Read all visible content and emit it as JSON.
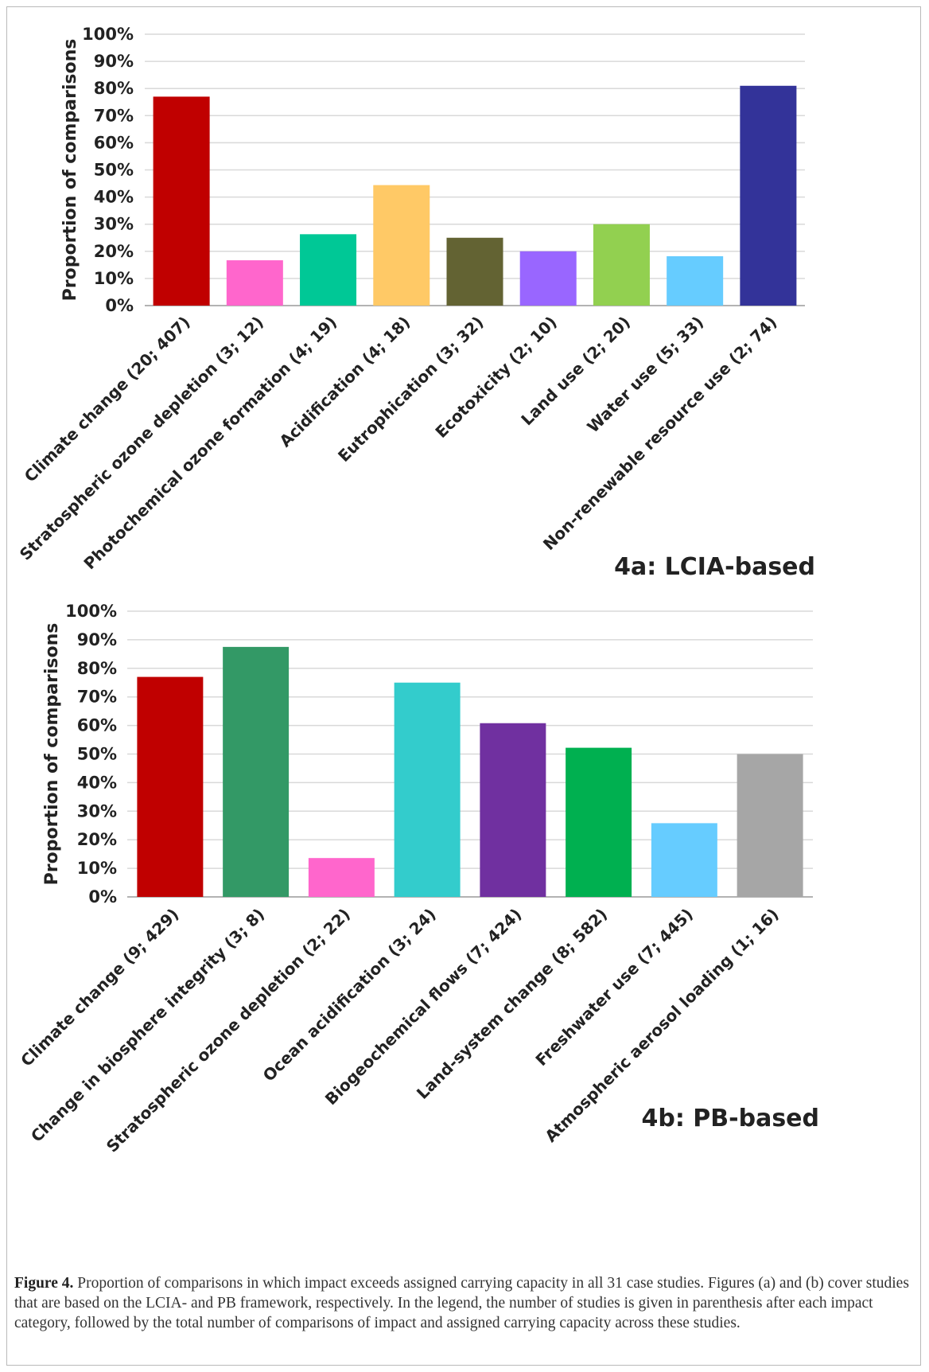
{
  "chart_data": [
    {
      "type": "bar",
      "panel_label": "4a: LCIA-based",
      "ylabel": "Proportion of comparisons",
      "ylim": [
        0,
        100
      ],
      "yticks": [
        "0%",
        "10%",
        "20%",
        "30%",
        "40%",
        "50%",
        "60%",
        "70%",
        "80%",
        "90%",
        "100%"
      ],
      "grid": true,
      "categories": [
        "Climate change (20; 407)",
        "Stratospheric ozone depletion (3; 12)",
        "Photochemical ozone formation (4; 19)",
        "Acidification (4; 18)",
        "Eutrophication (3; 32)",
        "Ecotoxicity (2; 10)",
        "Land use (2; 20)",
        "Water use (5; 33)",
        "Non-renewable resource use (2; 74)"
      ],
      "values": [
        77,
        16.7,
        26.3,
        44.4,
        25,
        20,
        30,
        18.2,
        81
      ],
      "colors": [
        "#c00000",
        "#ff66cc",
        "#00c896",
        "#ffc966",
        "#636333",
        "#9966ff",
        "#92d050",
        "#66ccff",
        "#333399"
      ]
    },
    {
      "type": "bar",
      "panel_label": "4b: PB-based",
      "ylabel": "Proportion of comparisons",
      "ylim": [
        0,
        100
      ],
      "yticks": [
        "0%",
        "10%",
        "20%",
        "30%",
        "40%",
        "50%",
        "60%",
        "70%",
        "80%",
        "90%",
        "100%"
      ],
      "grid": true,
      "categories": [
        "Climate change (9; 429)",
        "Change in biosphere integrity (3; 8)",
        "Stratospheric ozone depletion (2; 22)",
        "Ocean acidification (3; 24)",
        "Biogeochemical flows (7; 424)",
        "Land-system change (8; 582)",
        "Freshwater use (7; 445)",
        "Atmospheric aerosol loading (1; 16)"
      ],
      "values": [
        77,
        87.5,
        13.6,
        75,
        60.8,
        52.2,
        25.8,
        50
      ],
      "colors": [
        "#c00000",
        "#339966",
        "#ff66cc",
        "#33cccc",
        "#7030a0",
        "#00b050",
        "#66ccff",
        "#a6a6a6"
      ]
    }
  ],
  "caption": {
    "label": "Figure 4.",
    "text": " Proportion of comparisons in which impact exceeds assigned carrying capacity in all 31 case studies. Figures (a) and (b) cover studies that are based on the LCIA- and PB framework, respectively. In the legend, the number of studies is given in parenthesis after each impact category, followed by the total number of comparisons of impact and assigned carrying capacity across these studies."
  }
}
